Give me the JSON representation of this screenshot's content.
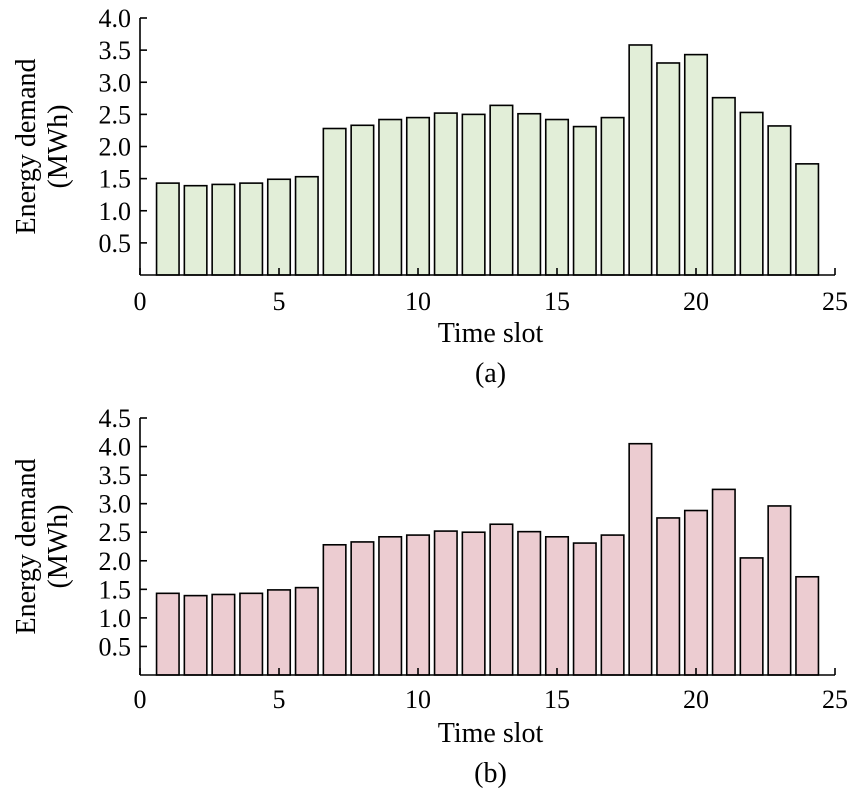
{
  "chart_data": [
    {
      "type": "bar",
      "panel_label": "(a)",
      "xlabel": "Time slot",
      "ylabel_line1": "Energy demand",
      "ylabel_line2": "(MWh)",
      "xlim": [
        0,
        25
      ],
      "ylim": [
        0,
        4.0
      ],
      "xticks": [
        "0",
        "5",
        "10",
        "15",
        "20",
        "25"
      ],
      "yticks": [
        "0.5",
        "1.0",
        "1.5",
        "2.0",
        "2.5",
        "3.0",
        "3.5",
        "4.0"
      ],
      "bar_color": "#e2eed8",
      "x": [
        1,
        2,
        3,
        4,
        5,
        6,
        7,
        8,
        9,
        10,
        11,
        12,
        13,
        14,
        15,
        16,
        17,
        18,
        19,
        20,
        21,
        22,
        23,
        24
      ],
      "values": [
        1.43,
        1.39,
        1.41,
        1.43,
        1.49,
        1.53,
        2.28,
        2.33,
        2.42,
        2.45,
        2.52,
        2.5,
        2.64,
        2.51,
        2.42,
        2.31,
        2.45,
        3.58,
        3.3,
        3.43,
        2.76,
        2.53,
        2.32,
        1.73
      ]
    },
    {
      "type": "bar",
      "panel_label": "(b)",
      "xlabel": "Time slot",
      "ylabel_line1": "Energy demand",
      "ylabel_line2": "(MWh)",
      "xlim": [
        0,
        25
      ],
      "ylim": [
        0,
        4.5
      ],
      "xticks": [
        "0",
        "5",
        "10",
        "15",
        "20",
        "25"
      ],
      "yticks": [
        "0.5",
        "1.0",
        "1.5",
        "2.0",
        "2.5",
        "3.0",
        "3.5",
        "4.0",
        "4.5"
      ],
      "bar_color": "#ecccd1",
      "x": [
        1,
        2,
        3,
        4,
        5,
        6,
        7,
        8,
        9,
        10,
        11,
        12,
        13,
        14,
        15,
        16,
        17,
        18,
        19,
        20,
        21,
        22,
        23,
        24
      ],
      "values": [
        1.43,
        1.39,
        1.41,
        1.43,
        1.49,
        1.53,
        2.28,
        2.33,
        2.42,
        2.45,
        2.52,
        2.5,
        2.64,
        2.51,
        2.42,
        2.31,
        2.45,
        4.05,
        2.75,
        2.88,
        3.25,
        2.05,
        2.96,
        1.72
      ]
    }
  ]
}
